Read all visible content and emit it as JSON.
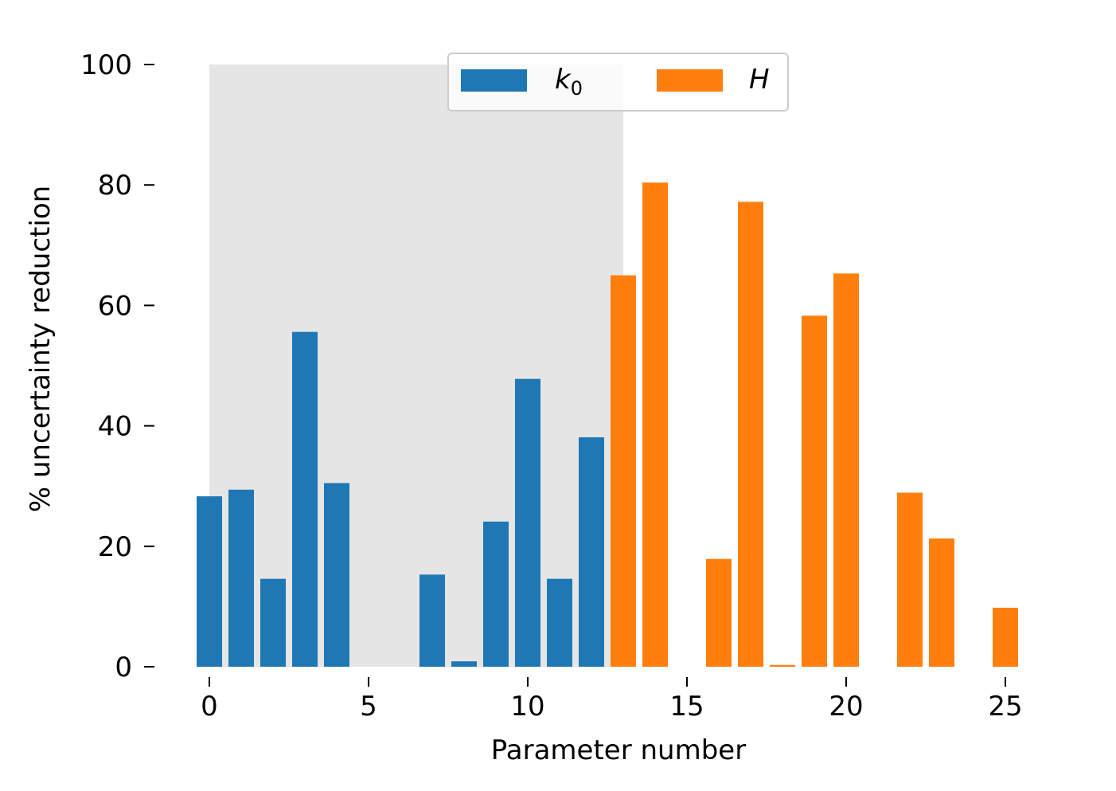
{
  "chart_data": {
    "type": "bar",
    "title": "",
    "xlabel": "Parameter number",
    "ylabel": "% uncertainty reduction",
    "xlim": [
      -0.5,
      25.5
    ],
    "ylim": [
      0,
      100
    ],
    "xticks": [
      0,
      5,
      10,
      15,
      20,
      25
    ],
    "yticks": [
      0,
      20,
      40,
      60,
      80,
      100
    ],
    "shaded_region": {
      "x_start": 0,
      "x_end": 13,
      "y_top": 100,
      "color": "#e5e5e5"
    },
    "legend": {
      "placement": "top-center",
      "entries": [
        {
          "label": "k",
          "subscript": "0",
          "color": "#1f77b4"
        },
        {
          "label": "H",
          "subscript": "",
          "color": "#ff7f0e"
        }
      ]
    },
    "series": [
      {
        "name": "k0",
        "color": "#1f77b4",
        "x": [
          0,
          1,
          2,
          3,
          4,
          5,
          6,
          7,
          8,
          9,
          10,
          11,
          12
        ],
        "values": [
          28.3,
          29.4,
          14.6,
          55.6,
          30.5,
          0,
          0,
          15.3,
          0.9,
          24.1,
          47.8,
          14.6,
          38.1
        ]
      },
      {
        "name": "H",
        "color": "#ff7f0e",
        "x": [
          13,
          14,
          15,
          16,
          17,
          18,
          19,
          20,
          21,
          22,
          23,
          24,
          25
        ],
        "values": [
          65.0,
          80.4,
          0,
          17.9,
          77.2,
          0.3,
          58.3,
          65.3,
          0,
          28.9,
          21.3,
          0,
          9.8
        ]
      }
    ]
  }
}
